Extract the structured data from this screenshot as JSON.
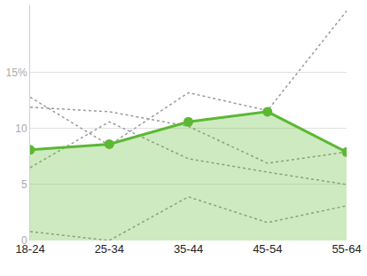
{
  "chart_data": {
    "type": "line",
    "categories": [
      "18-24",
      "25-34",
      "35-44",
      "45-54",
      "55-64"
    ],
    "series": [
      {
        "type": "line",
        "color": "#9a9a9a",
        "line_style": "dotted",
        "marker": "none",
        "values": [
          12.8,
          8.5,
          13.2,
          11.6,
          20.5
        ]
      },
      {
        "type": "line",
        "color": "#9a9a9a",
        "line_style": "dotted",
        "marker": "none",
        "values": [
          11.9,
          11.5,
          10.2,
          6.9,
          7.9
        ]
      },
      {
        "type": "line",
        "color": "#9a9a9a",
        "line_style": "dotted",
        "marker": "none",
        "values": [
          6.5,
          10.6,
          7.3,
          6.1,
          5.0
        ]
      },
      {
        "type": "line",
        "color": "#9a9a9a",
        "line_style": "dotted",
        "marker": "none",
        "values": [
          0.8,
          0,
          3.9,
          1.6,
          3.1
        ]
      },
      {
        "type": "area",
        "color": "#5cb833",
        "line_style": "solid",
        "marker": "circle",
        "values": [
          8.1,
          8.6,
          10.6,
          11.5,
          7.9
        ]
      }
    ],
    "ylim": [
      0,
      21
    ],
    "yticks": [
      0,
      5,
      10,
      {
        "value": 15,
        "label": "15%"
      }
    ],
    "grid": true
  }
}
